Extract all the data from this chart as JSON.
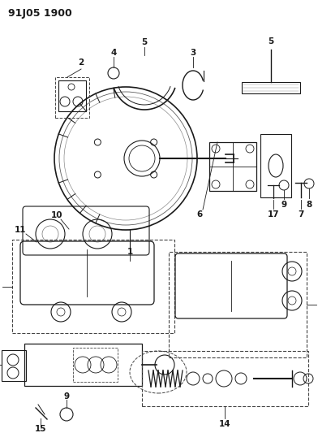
{
  "title": "91J05 1900",
  "bg_color": "#ffffff",
  "line_color": "#1a1a1a",
  "dashed_color": "#444444",
  "title_fontsize": 9,
  "label_fontsize": 7.5,
  "fig_width": 3.92,
  "fig_height": 5.33,
  "dpi": 100
}
